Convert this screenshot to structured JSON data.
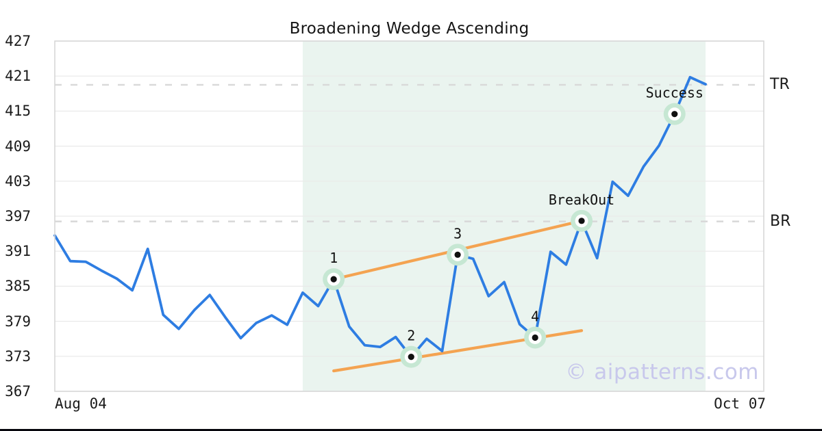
{
  "title": "Broadening Wedge Ascending",
  "watermark": "© aipatterns.com",
  "x_axis": {
    "left_label": "Aug 04",
    "right_label": "Oct 07"
  },
  "y_axis": {
    "ticks": [
      427,
      421,
      415,
      409,
      403,
      397,
      391,
      385,
      379,
      373,
      367
    ]
  },
  "levels": {
    "tr": {
      "label": "TR",
      "value": 419.5
    },
    "br": {
      "label": "BR",
      "value": 396.1
    }
  },
  "chart_data": {
    "type": "line",
    "title": "Broadening Wedge Ascending",
    "xlabel": "",
    "ylabel": "",
    "ylim": [
      367,
      427
    ],
    "x_start_label": "Aug 04",
    "x_end_label": "Oct 07",
    "grid": "horizontal-only",
    "values": [
      393.7,
      389.3,
      389.2,
      387.7,
      386.3,
      384.3,
      391.4,
      380.1,
      377.7,
      380.9,
      383.5,
      379.7,
      376.1,
      378.7,
      380.0,
      378.4,
      383.9,
      381.6,
      386.2,
      378.1,
      374.9,
      374.6,
      376.3,
      372.9,
      376.0,
      373.9,
      390.4,
      389.7,
      383.3,
      385.7,
      378.5,
      376.2,
      390.9,
      388.7,
      396.2,
      389.8,
      402.9,
      400.5,
      405.5,
      409.1,
      414.5,
      420.8,
      419.6
    ],
    "markers": [
      {
        "index": 18,
        "label": "1"
      },
      {
        "index": 23,
        "label": "2"
      },
      {
        "index": 26,
        "label": "3"
      },
      {
        "index": 31,
        "label": "4"
      },
      {
        "index": 34,
        "label": "BreakOut"
      },
      {
        "index": 40,
        "label": "Success"
      }
    ],
    "levels": [
      {
        "label": "TR",
        "value": 419.5
      },
      {
        "label": "BR",
        "value": 396.1
      }
    ],
    "trendlines": {
      "upper": {
        "start_index": 18,
        "start_value": 386.2,
        "end_index": 34,
        "end_value": 396.2
      },
      "lower": {
        "start_index": 18,
        "start_value": 370.5,
        "end_index": 34,
        "end_value": 377.4
      }
    },
    "pattern_zone": {
      "start_index": 16,
      "end_index": 42
    },
    "colors": {
      "price_line": "#2e7de2",
      "trend_line": "#f4a351",
      "zone_fill": "#eaf4ef",
      "marker_halo": "#c6e7d3",
      "marker_dot": "#111111",
      "dashed_level": "#d9d9d9",
      "grid": "#e9e9e9",
      "plot_border": "#d7d7d7",
      "watermark": "#c8c8ec"
    }
  }
}
